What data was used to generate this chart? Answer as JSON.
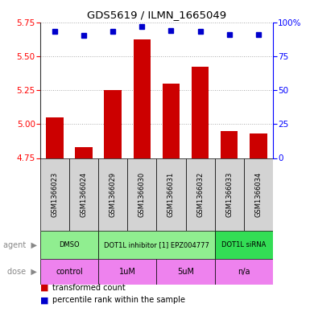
{
  "title": "GDS5619 / ILMN_1665049",
  "samples": [
    "GSM1366023",
    "GSM1366024",
    "GSM1366029",
    "GSM1366030",
    "GSM1366031",
    "GSM1366032",
    "GSM1366033",
    "GSM1366034"
  ],
  "bar_values": [
    5.05,
    4.83,
    5.25,
    5.62,
    5.3,
    5.42,
    4.95,
    4.93
  ],
  "percentile_values": [
    93,
    90,
    93,
    97,
    94,
    93,
    91,
    91
  ],
  "y_min": 4.75,
  "y_max": 5.75,
  "y_ticks_left": [
    4.75,
    5.0,
    5.25,
    5.5,
    5.75
  ],
  "y_ticks_right": [
    0,
    25,
    50,
    75,
    100
  ],
  "bar_color": "#cc0000",
  "dot_color": "#0000cc",
  "agent_groups": [
    {
      "label": "DMSO",
      "start": 0,
      "end": 1,
      "color": "#90ee90"
    },
    {
      "label": "DOT1L inhibitor [1] EPZ004777",
      "start": 2,
      "end": 5,
      "color": "#90ee90"
    },
    {
      "label": "DOT1L siRNA",
      "start": 6,
      "end": 7,
      "color": "#33dd55"
    }
  ],
  "dose_groups": [
    {
      "label": "control",
      "start": 0,
      "end": 1,
      "color": "#ee82ee"
    },
    {
      "label": "1uM",
      "start": 2,
      "end": 3,
      "color": "#ee82ee"
    },
    {
      "label": "5uM",
      "start": 4,
      "end": 5,
      "color": "#ee82ee"
    },
    {
      "label": "n/a",
      "start": 6,
      "end": 7,
      "color": "#ee82ee"
    }
  ],
  "grid_color": "#aaaaaa",
  "bg_color": "#ffffff",
  "sample_box_color": "#d3d3d3"
}
